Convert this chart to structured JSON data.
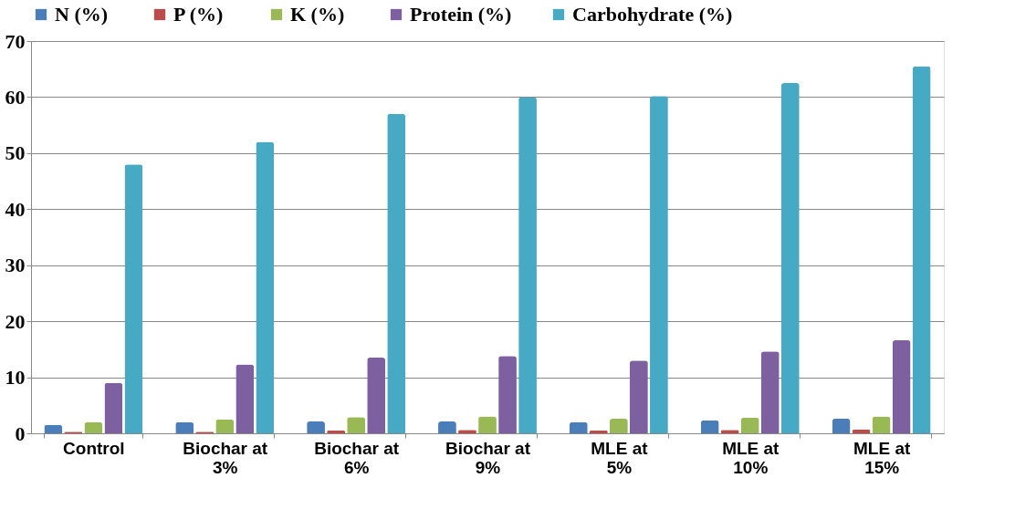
{
  "chart_data": {
    "type": "bar",
    "categories": [
      "Control",
      "Biochar at 3%",
      "Biochar at 6%",
      "Biochar at 9%",
      "MLE at 5%",
      "MLE at 10%",
      "MLE at 15%"
    ],
    "series": [
      {
        "name": "N  (%)",
        "color": "#4a7ebb",
        "values": [
          1.5,
          2,
          2.1,
          2.1,
          2,
          2.3,
          2.6
        ]
      },
      {
        "name": "P  (%)",
        "color": "#be4b48",
        "values": [
          0.3,
          0.3,
          0.5,
          0.6,
          0.5,
          0.6,
          0.7
        ]
      },
      {
        "name": "K  (%)",
        "color": "#98b954",
        "values": [
          2,
          2.5,
          2.9,
          3,
          2.6,
          2.8,
          3
        ]
      },
      {
        "name": "Protein (%)",
        "color": "#7d60a0",
        "values": [
          9,
          12.3,
          13.5,
          13.8,
          13,
          14.6,
          16.6
        ]
      },
      {
        "name": "Carbohydrate (%)",
        "color": "#46aac5",
        "values": [
          48,
          52,
          57,
          60,
          60.2,
          62.5,
          65.5
        ]
      }
    ],
    "ylim": [
      0,
      70
    ],
    "yticks": [
      0,
      10,
      20,
      30,
      40,
      50,
      60,
      70
    ],
    "grid": "y",
    "legend": "top"
  }
}
